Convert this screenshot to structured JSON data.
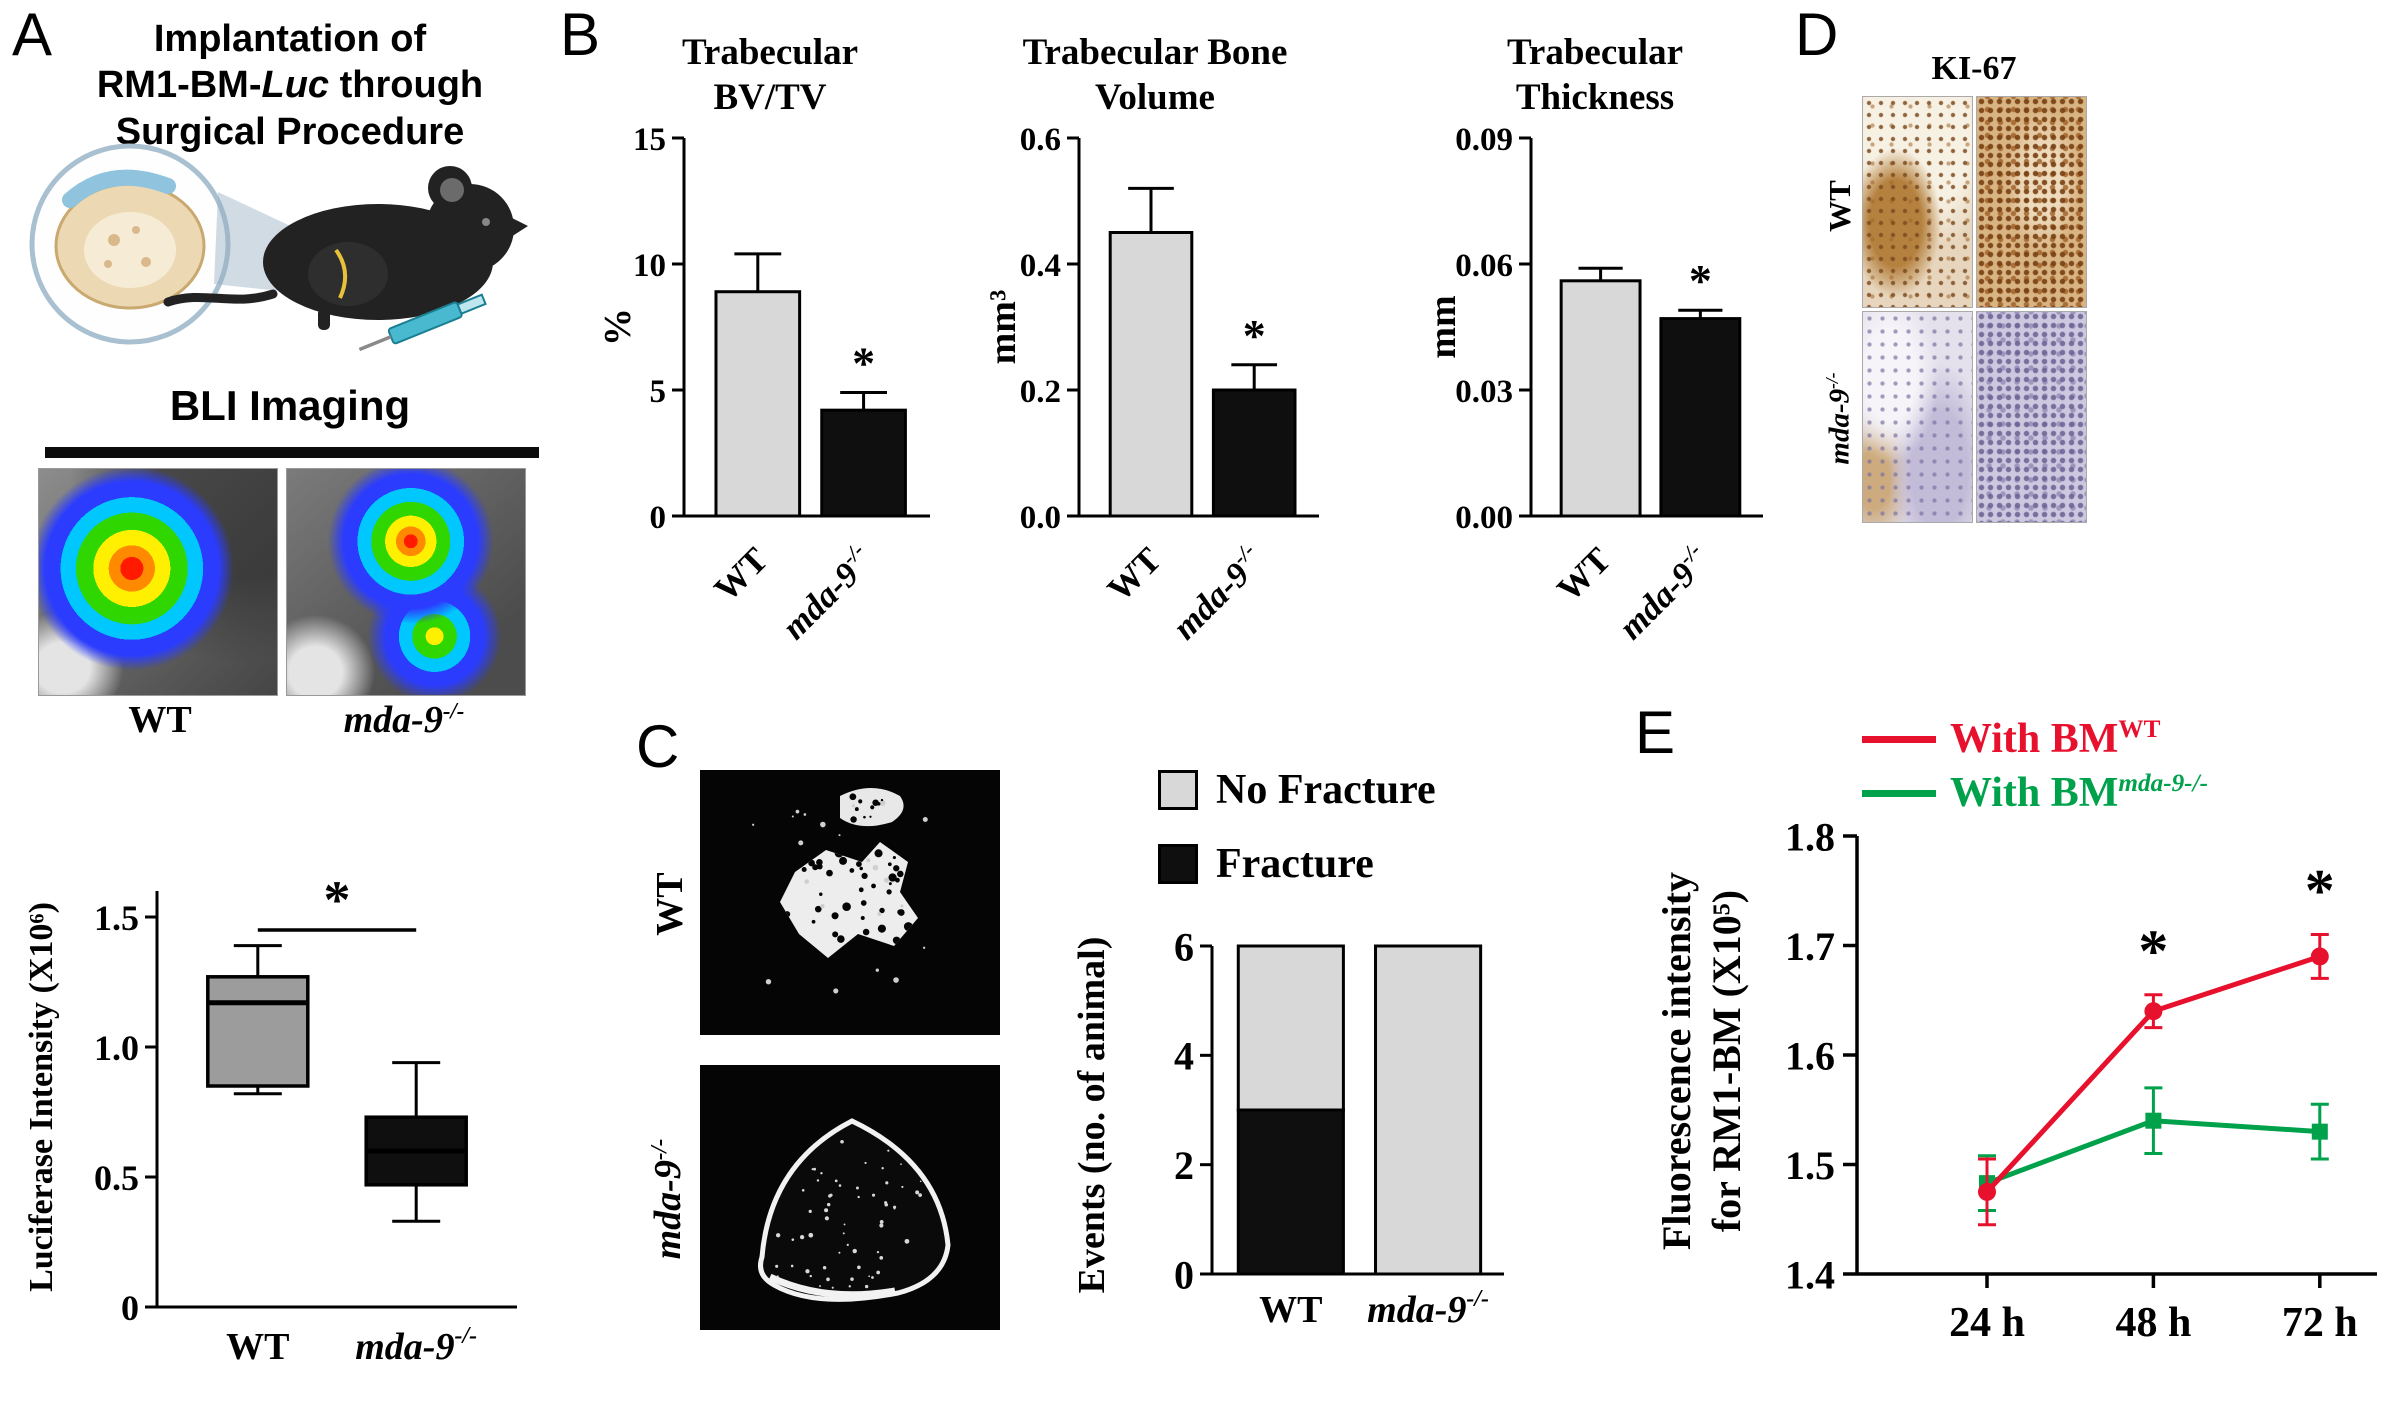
{
  "panels": {
    "A": {
      "letter": "A",
      "title_line1": "Implantation of",
      "title_line2_pre": "RM1-BM-",
      "title_line2_italic": "Luc",
      "title_line2_post": " through",
      "title_line3": "Surgical Procedure",
      "bli_heading": "BLI Imaging",
      "bli_labels": {
        "wt": "WT",
        "mda_base": "mda-9",
        "mda_sup": "-/-"
      }
    },
    "B": {
      "letter": "B"
    },
    "C": {
      "letter": "C",
      "ct_labels": {
        "wt": "WT",
        "mda_base": "mda-9",
        "mda_sup": "-/-"
      }
    },
    "D": {
      "letter": "D",
      "stain_title": "KI-67",
      "row_labels": {
        "wt": "WT",
        "mda_base": "mda-9",
        "mda_sup": "-/-"
      }
    },
    "E": {
      "letter": "E"
    }
  },
  "chart_data": [
    {
      "id": "luciferase_box",
      "type": "box",
      "ylabel": "Luciferase Intensity (X10⁶)",
      "ylim": [
        0,
        1.6
      ],
      "yticks": [
        {
          "v": 0,
          "label": "0"
        },
        {
          "v": 0.5,
          "label": "0.5"
        },
        {
          "v": 1.0,
          "label": "1.0"
        },
        {
          "v": 1.5,
          "label": "1.5"
        }
      ],
      "categories": [
        {
          "text": "WT"
        },
        {
          "text": "mda-9",
          "sup": "-/-",
          "italic": true
        }
      ],
      "boxes": [
        {
          "whisker_low": 0.82,
          "q1": 0.85,
          "median": 1.17,
          "q3": 1.27,
          "whisker_high": 1.39,
          "fill": "#9c9c9c"
        },
        {
          "whisker_low": 0.33,
          "q1": 0.47,
          "median": 0.6,
          "q3": 0.73,
          "whisker_high": 0.94,
          "fill": "#0f0f0f"
        }
      ],
      "significance": {
        "label": "*",
        "y": 1.45,
        "between": [
          0,
          1
        ]
      }
    },
    {
      "id": "trabecular_bvtv",
      "type": "bar",
      "title_line1": "Trabecular",
      "title_line2": "BV/TV",
      "ylabel": "%",
      "ylim": [
        0,
        15
      ],
      "yticks": [
        {
          "v": 0,
          "label": "0"
        },
        {
          "v": 5,
          "label": "5"
        },
        {
          "v": 10,
          "label": "10"
        },
        {
          "v": 15,
          "label": "15"
        }
      ],
      "categories": [
        {
          "text": "WT"
        },
        {
          "text": "mda-9",
          "sup": "-/-",
          "italic": true
        }
      ],
      "values": [
        8.9,
        4.2
      ],
      "errors": [
        1.5,
        0.7
      ],
      "bar_colors": [
        "#d8d8d8",
        "#0f0f0f"
      ],
      "sig_label": "*",
      "sig_indices": [
        1
      ]
    },
    {
      "id": "trabecular_bone_volume",
      "type": "bar",
      "title_line1": "Trabecular Bone",
      "title_line2": "Volume",
      "ylabel": "mm³",
      "ylim": [
        0,
        0.6
      ],
      "yticks": [
        {
          "v": 0,
          "label": "0.0"
        },
        {
          "v": 0.2,
          "label": "0.2"
        },
        {
          "v": 0.4,
          "label": "0.4"
        },
        {
          "v": 0.6,
          "label": "0.6"
        }
      ],
      "categories": [
        {
          "text": "WT"
        },
        {
          "text": "mda-9",
          "sup": "-/-",
          "italic": true
        }
      ],
      "values": [
        0.45,
        0.2
      ],
      "errors": [
        0.07,
        0.04
      ],
      "bar_colors": [
        "#d8d8d8",
        "#0f0f0f"
      ],
      "sig_label": "*",
      "sig_indices": [
        1
      ]
    },
    {
      "id": "trabecular_thickness",
      "type": "bar",
      "title_line1": "Trabecular",
      "title_line2": "Thickness",
      "ylabel": "mm",
      "ylim": [
        0,
        0.09
      ],
      "yticks": [
        {
          "v": 0,
          "label": "0.00"
        },
        {
          "v": 0.03,
          "label": "0.03"
        },
        {
          "v": 0.06,
          "label": "0.06"
        },
        {
          "v": 0.09,
          "label": "0.09"
        }
      ],
      "categories": [
        {
          "text": "WT"
        },
        {
          "text": "mda-9",
          "sup": "-/-",
          "italic": true
        }
      ],
      "values": [
        0.056,
        0.047
      ],
      "errors": [
        0.003,
        0.002
      ],
      "bar_colors": [
        "#d8d8d8",
        "#0f0f0f"
      ],
      "sig_label": "*",
      "sig_indices": [
        1
      ]
    },
    {
      "id": "fracture_events",
      "type": "stacked_bar",
      "ylabel": "Events (no. of animal)",
      "ylim": [
        0,
        6
      ],
      "yticks": [
        {
          "v": 0,
          "label": "0"
        },
        {
          "v": 2,
          "label": "2"
        },
        {
          "v": 4,
          "label": "4"
        },
        {
          "v": 6,
          "label": "6"
        }
      ],
      "categories": [
        {
          "text": "WT"
        },
        {
          "text": "mda-9",
          "sup": "-/-",
          "italic": true
        }
      ],
      "series": [
        {
          "name": "Fracture",
          "color": "#0f0f0f",
          "values": [
            3,
            0
          ]
        },
        {
          "name": "No Fracture",
          "color": "#d8d8d8",
          "values": [
            3,
            6
          ]
        }
      ]
    },
    {
      "id": "rm1_fluorescence",
      "type": "line",
      "ylabel_line1": "Fluorescence intensity",
      "ylabel_line2": "for RM1-BM (X10⁵)",
      "x_categories": [
        "24 h",
        "48 h",
        "72 h"
      ],
      "ylim": [
        1.4,
        1.8
      ],
      "yticks": [
        {
          "v": 1.4,
          "label": "1.4"
        },
        {
          "v": 1.5,
          "label": "1.5"
        },
        {
          "v": 1.6,
          "label": "1.6"
        },
        {
          "v": 1.7,
          "label": "1.7"
        },
        {
          "v": 1.8,
          "label": "1.8"
        }
      ],
      "series": [
        {
          "legend_base": "With BM",
          "legend_sup": "WT",
          "color": "#e8112d",
          "marker": "circle",
          "values": [
            1.475,
            1.64,
            1.69
          ],
          "errors": [
            0.03,
            0.015,
            0.02
          ]
        },
        {
          "legend_base": "With BM",
          "legend_sup": "mda-9-/-",
          "color": "#00a14b",
          "marker": "square",
          "values": [
            1.483,
            1.54,
            1.53
          ],
          "errors": [
            0.025,
            0.03,
            0.025
          ]
        }
      ],
      "sig_points": [
        {
          "series": 0,
          "x_index": 1,
          "label": "*"
        },
        {
          "series": 0,
          "x_index": 2,
          "label": "*"
        }
      ]
    }
  ]
}
